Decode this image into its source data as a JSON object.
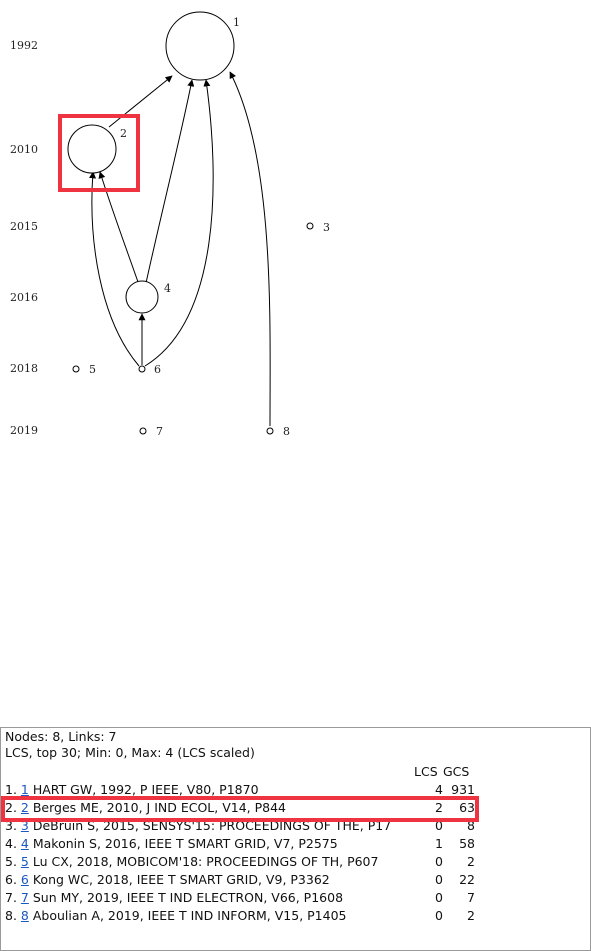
{
  "graph": {
    "years": [
      "1992",
      "2010",
      "2015",
      "2016",
      "2018",
      "2019"
    ],
    "nodes": [
      {
        "id": "1",
        "label": "1"
      },
      {
        "id": "2",
        "label": "2"
      },
      {
        "id": "3",
        "label": "3"
      },
      {
        "id": "4",
        "label": "4"
      },
      {
        "id": "5",
        "label": "5"
      },
      {
        "id": "6",
        "label": "6"
      },
      {
        "id": "7",
        "label": "7"
      },
      {
        "id": "8",
        "label": "8"
      }
    ],
    "links": [
      {
        "from": "2",
        "to": "1"
      },
      {
        "from": "4",
        "to": "1"
      },
      {
        "from": "6",
        "to": "1"
      },
      {
        "from": "8",
        "to": "1"
      },
      {
        "from": "4",
        "to": "2"
      },
      {
        "from": "6",
        "to": "2"
      },
      {
        "from": "6",
        "to": "4"
      }
    ],
    "highlight_color": "#ef3340"
  },
  "panel": {
    "summary": "Nodes: 8, Links: 7",
    "subtitle": "LCS, top 30; Min: 0, Max: 4 (LCS scaled)",
    "col_lcs": "LCS",
    "col_gcs": "GCS",
    "rows": [
      {
        "rank": "1.",
        "num": "1",
        "text": "HART GW, 1992, P IEEE, V80, P1870",
        "lcs": "4",
        "gcs": "931"
      },
      {
        "rank": "2.",
        "num": "2",
        "text": "Berges ME, 2010, J IND ECOL, V14, P844",
        "lcs": "2",
        "gcs": "63"
      },
      {
        "rank": "3.",
        "num": "3",
        "text": "DeBruin S, 2015, SENSYS'15: PROCEEDINGS OF THE, P17",
        "lcs": "0",
        "gcs": "8"
      },
      {
        "rank": "4.",
        "num": "4",
        "text": "Makonin S, 2016, IEEE T SMART GRID, V7, P2575",
        "lcs": "1",
        "gcs": "58"
      },
      {
        "rank": "5.",
        "num": "5",
        "text": "Lu CX, 2018, MOBICOM'18: PROCEEDINGS OF TH, P607",
        "lcs": "0",
        "gcs": "2"
      },
      {
        "rank": "6.",
        "num": "6",
        "text": "Kong WC, 2018, IEEE T SMART GRID, V9, P3362",
        "lcs": "0",
        "gcs": "22"
      },
      {
        "rank": "7.",
        "num": "7",
        "text": "Sun MY, 2019, IEEE T IND ELECTRON, V66, P1608",
        "lcs": "0",
        "gcs": "7"
      },
      {
        "rank": "8.",
        "num": "8",
        "text": "Aboulian A, 2019, IEEE T IND INFORM, V15, P1405",
        "lcs": "0",
        "gcs": "2"
      }
    ]
  }
}
